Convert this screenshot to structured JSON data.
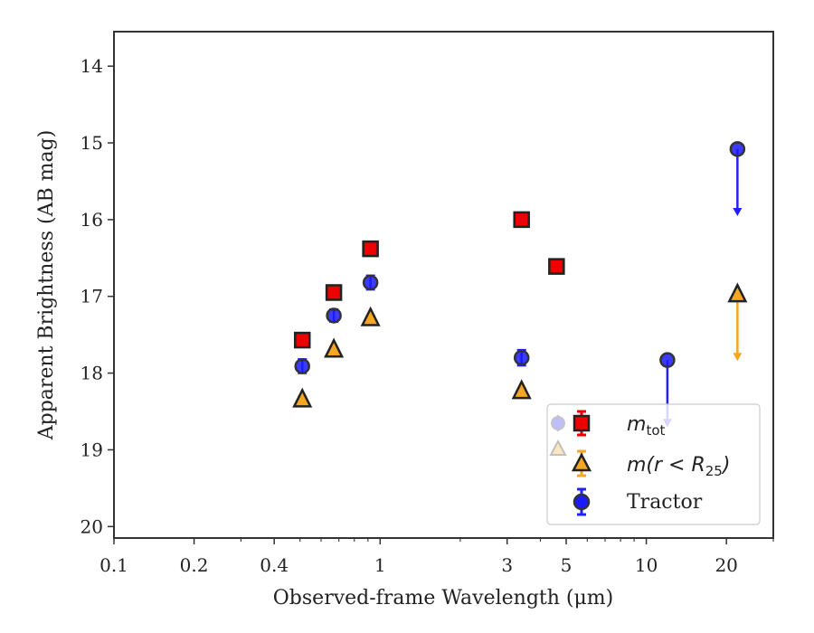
{
  "chart_data": {
    "type": "scatter",
    "xlabel": "Observed-frame Wavelength (μm)",
    "ylabel": "Apparent Brightness (AB mag)",
    "xscale": "log",
    "xlim": [
      0.1,
      30
    ],
    "ylim": [
      20.15,
      13.55
    ],
    "y_inverted": true,
    "x_ticks": [
      0.1,
      0.2,
      0.4,
      1,
      3,
      5,
      10,
      20
    ],
    "x_tick_labels": [
      "0.1",
      "0.2",
      "0.4",
      "1",
      "3",
      "5",
      "10",
      "20"
    ],
    "y_ticks": [
      14,
      15,
      16,
      17,
      18,
      19,
      20
    ],
    "y_tick_labels": [
      "14",
      "15",
      "16",
      "17",
      "18",
      "19",
      "20"
    ],
    "legend_position": "lower-right",
    "series": [
      {
        "name": "m_tot",
        "marker": "square",
        "color": "#ee0000",
        "edge_color": "#222222",
        "errorbar_color": "#ee0000",
        "x": [
          0.51,
          0.67,
          0.92,
          3.4,
          4.6
        ],
        "y": [
          17.57,
          16.95,
          16.38,
          16.0,
          16.61
        ],
        "yerr": [
          0.05,
          0.05,
          0.05,
          0.04,
          0.04
        ]
      },
      {
        "name": "m(r < R25)",
        "marker": "triangle",
        "color": "#f5a623",
        "edge_color": "#222222",
        "errorbar_color": "#f5a623",
        "x": [
          0.51,
          0.67,
          0.92,
          3.4,
          22.0
        ],
        "y": [
          18.34,
          17.69,
          17.28,
          18.23,
          16.97
        ],
        "yerr": [
          0.03,
          0.03,
          0.03,
          0.03,
          0.0
        ],
        "upper_limit": [
          false,
          false,
          false,
          false,
          true
        ]
      },
      {
        "name": "Tractor",
        "marker": "circle",
        "color": "#1a1aff",
        "edge_color": "#333333",
        "errorbar_color": "#2020ff",
        "x": [
          0.51,
          0.67,
          0.92,
          3.4,
          12.0,
          22.0
        ],
        "y": [
          17.91,
          17.25,
          16.82,
          17.8,
          17.83,
          15.08
        ],
        "yerr": [
          0.09,
          0.08,
          0.09,
          0.1,
          0.0,
          0.0
        ],
        "upper_limit": [
          false,
          false,
          false,
          false,
          true,
          true
        ]
      }
    ],
    "legend": {
      "entries": [
        {
          "math": "m",
          "sub": "tot"
        },
        {
          "math": "m(r < R",
          "sub": "25",
          "close": ")"
        },
        {
          "text": "Tractor"
        }
      ]
    }
  }
}
